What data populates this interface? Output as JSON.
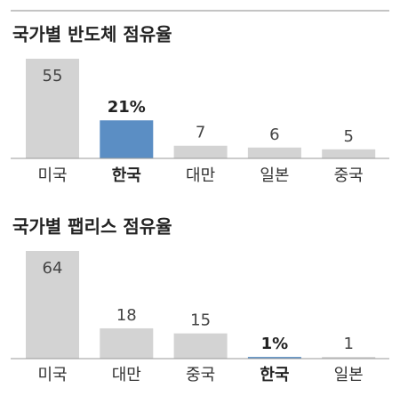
{
  "chart_data": [
    {
      "type": "bar",
      "title": "국가별 반도체 점유율",
      "categories": [
        "미국",
        "한국",
        "대만",
        "일본",
        "중국"
      ],
      "values": [
        55,
        21,
        7,
        6,
        5
      ],
      "value_labels": [
        "55",
        "21%",
        "7",
        "6",
        "5"
      ],
      "color": "#d3d3d3",
      "colors": [
        "#d3d3d3",
        "#5b8ec4",
        "#d3d3d3",
        "#d3d3d3",
        "#d3d3d3"
      ],
      "ylim": [
        0,
        55
      ]
    },
    {
      "type": "bar",
      "title": "국가별 팹리스 점유율",
      "categories": [
        "미국",
        "대만",
        "중국",
        "한국",
        "일본"
      ],
      "values": [
        64,
        18,
        15,
        1,
        1
      ],
      "value_labels": [
        "64",
        "18",
        "15",
        "1%",
        "1"
      ],
      "color": "#d3d3d3",
      "colors": [
        "#d3d3d3",
        "#d3d3d3",
        "#d3d3d3",
        "#5b8ec4",
        "#d3d3d3"
      ],
      "ylim": [
        0,
        64
      ]
    }
  ]
}
